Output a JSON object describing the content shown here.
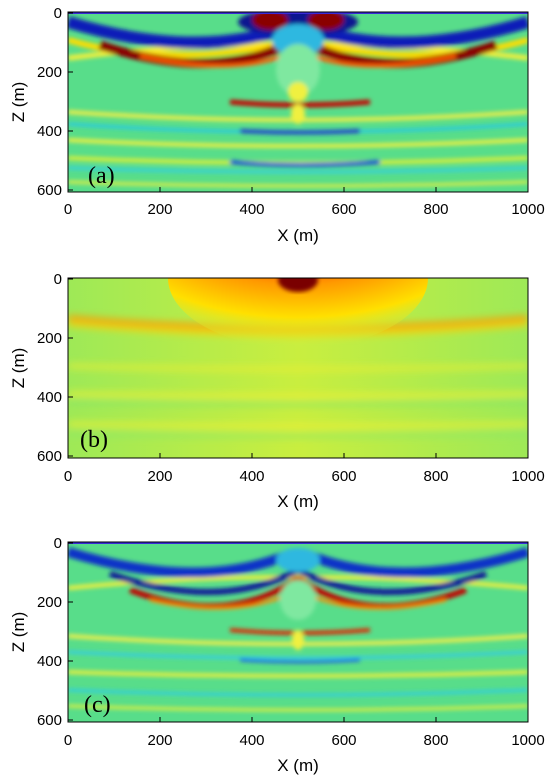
{
  "figure": {
    "panels": [
      {
        "label": "(a)",
        "xlabel": "X (m)",
        "ylabel": "Z (m)",
        "xlim": [
          0,
          1000
        ],
        "zlim": [
          0,
          620
        ],
        "xticks": [
          "0",
          "200",
          "400",
          "600",
          "800",
          "1000"
        ],
        "zticks": [
          "0",
          "200",
          "400",
          "600"
        ],
        "content": "full wavefield"
      },
      {
        "label": "(b)",
        "xlabel": "X (m)",
        "ylabel": "Z (m)",
        "xlim": [
          0,
          1000
        ],
        "zlim": [
          0,
          620
        ],
        "xticks": [
          "0",
          "200",
          "400",
          "600",
          "800",
          "1000"
        ],
        "zticks": [
          "0",
          "200",
          "400",
          "600"
        ],
        "content": "smooth background"
      },
      {
        "label": "(c)",
        "xlabel": "X (m)",
        "ylabel": "Z (m)",
        "xlim": [
          0,
          1000
        ],
        "zlim": [
          0,
          620
        ],
        "xticks": [
          "0",
          "200",
          "400",
          "600",
          "800",
          "1000"
        ],
        "zticks": [
          "0",
          "200",
          "400",
          "600"
        ],
        "content": "weaker wavefield"
      }
    ],
    "colormap": "jet",
    "colors": {
      "background": "#ffffff",
      "axis": "#000000"
    }
  }
}
